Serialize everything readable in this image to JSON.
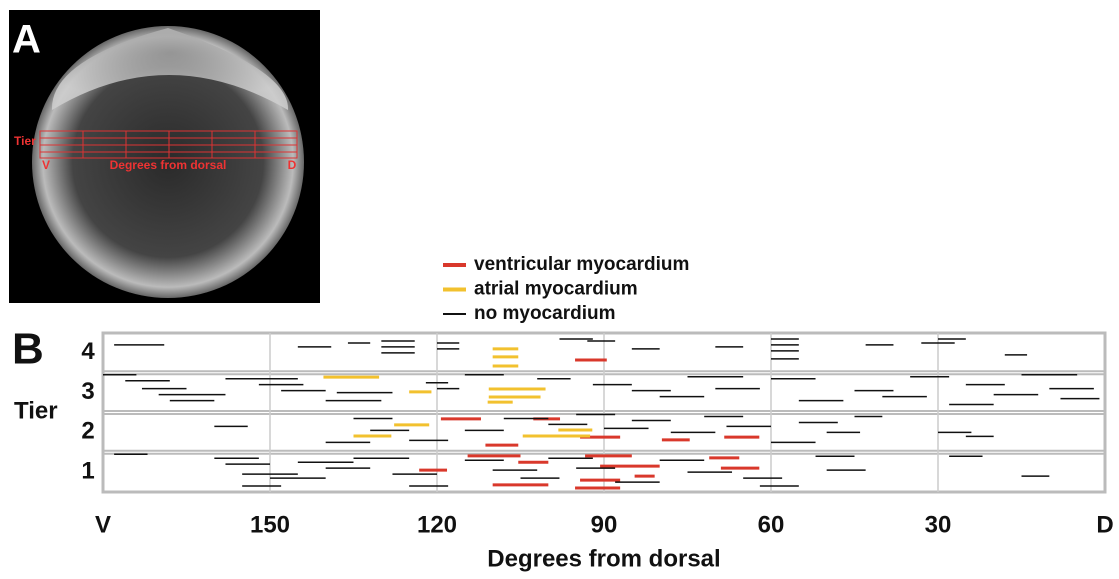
{
  "panel_a": {
    "label": "A",
    "tier_label": "Tier",
    "left_label": "V",
    "axis_label": "Degrees from dorsal",
    "right_label": "D"
  },
  "chart_data": {
    "type": "segment",
    "panel_label": "B",
    "ylabel": "Tier",
    "xlabel": "Degrees from dorsal",
    "tiers": [
      "1",
      "2",
      "3",
      "4"
    ],
    "xlim": [
      180,
      0
    ],
    "ylim": [
      0,
      4
    ],
    "xticks": [
      {
        "value": 180,
        "label": "V"
      },
      150,
      120,
      90,
      60,
      30,
      {
        "value": 0,
        "label": "D"
      }
    ],
    "grid": true,
    "series": [
      {
        "name": "ventricular myocardium",
        "color": "#d9382b",
        "segments": [
          [
            119.3,
            112.1,
            1.84
          ],
          [
            102.7,
            97.9,
            1.84
          ],
          [
            95.2,
            89.5,
            3.32
          ],
          [
            111.3,
            105.4,
            1.18
          ],
          [
            94.3,
            87.1,
            1.38
          ],
          [
            79.6,
            74.6,
            1.31
          ],
          [
            68.4,
            62.1,
            1.38
          ],
          [
            114.5,
            105,
            0.91
          ],
          [
            105.4,
            100,
            0.75
          ],
          [
            93.4,
            85,
            0.91
          ],
          [
            90.7,
            80,
            0.65
          ],
          [
            84.5,
            80.9,
            0.4
          ],
          [
            123.2,
            118.2,
            0.55
          ],
          [
            110,
            100,
            0.18
          ],
          [
            94.3,
            87.1,
            0.3
          ],
          [
            95.2,
            87.1,
            0.1
          ],
          [
            71.1,
            65.7,
            0.86
          ],
          [
            69,
            62.1,
            0.6
          ]
        ]
      },
      {
        "name": "atrial myocardium",
        "color": "#f2c12e",
        "segments": [
          [
            110,
            105.4,
            3.6
          ],
          [
            110,
            105.4,
            3.4
          ],
          [
            110,
            105.4,
            3.17
          ],
          [
            140.4,
            130.4,
            2.89
          ],
          [
            125,
            121,
            2.52
          ],
          [
            110.7,
            100.5,
            2.59
          ],
          [
            110.7,
            101.4,
            2.39
          ],
          [
            110.9,
            106.4,
            2.26
          ],
          [
            127.7,
            121.4,
            1.69
          ],
          [
            135,
            128.2,
            1.41
          ],
          [
            104.6,
            92.5,
            1.41
          ],
          [
            98.2,
            92.1,
            1.56
          ]
        ]
      },
      {
        "name": "no myocardium",
        "color": "#111111",
        "segments": [
          [
            178,
            169,
            3.7
          ],
          [
            145,
            139,
            3.65
          ],
          [
            130,
            124,
            3.8
          ],
          [
            130,
            124,
            3.65
          ],
          [
            130,
            124,
            3.5
          ],
          [
            120,
            116,
            3.75
          ],
          [
            120,
            116,
            3.6
          ],
          [
            136,
            132,
            3.75
          ],
          [
            93,
            88,
            3.8
          ],
          [
            85,
            80,
            3.6
          ],
          [
            70,
            65,
            3.65
          ],
          [
            60,
            55,
            3.85
          ],
          [
            60,
            55,
            3.7
          ],
          [
            60,
            55,
            3.55
          ],
          [
            60,
            55,
            3.35
          ],
          [
            43,
            38,
            3.7
          ],
          [
            30,
            25,
            3.85
          ],
          [
            33,
            27,
            3.75
          ],
          [
            18,
            14,
            3.45
          ],
          [
            98,
            92,
            3.85
          ],
          [
            180,
            174,
            2.95
          ],
          [
            176,
            168,
            2.8
          ],
          [
            173,
            165,
            2.6
          ],
          [
            170,
            158,
            2.45
          ],
          [
            168,
            160,
            2.3
          ],
          [
            158,
            145,
            2.85
          ],
          [
            152,
            144,
            2.7
          ],
          [
            148,
            140,
            2.55
          ],
          [
            140,
            130,
            2.3
          ],
          [
            138,
            128,
            2.5
          ],
          [
            122,
            118,
            2.75
          ],
          [
            120,
            116,
            2.6
          ],
          [
            115,
            108,
            2.95
          ],
          [
            102,
            96,
            2.85
          ],
          [
            92,
            85,
            2.7
          ],
          [
            85,
            78,
            2.55
          ],
          [
            80,
            72,
            2.4
          ],
          [
            75,
            65,
            2.9
          ],
          [
            70,
            62,
            2.6
          ],
          [
            60,
            52,
            2.85
          ],
          [
            55,
            47,
            2.3
          ],
          [
            45,
            38,
            2.55
          ],
          [
            40,
            32,
            2.4
          ],
          [
            35,
            28,
            2.9
          ],
          [
            25,
            18,
            2.7
          ],
          [
            20,
            12,
            2.45
          ],
          [
            15,
            5,
            2.95
          ],
          [
            10,
            2,
            2.6
          ],
          [
            8,
            1,
            2.35
          ],
          [
            28,
            20,
            2.2
          ],
          [
            160,
            154,
            1.65
          ],
          [
            135,
            128,
            1.85
          ],
          [
            132,
            125,
            1.55
          ],
          [
            125,
            118,
            1.3
          ],
          [
            115,
            108,
            1.55
          ],
          [
            108,
            100,
            1.85
          ],
          [
            100,
            93,
            1.7
          ],
          [
            95,
            88,
            1.95
          ],
          [
            90,
            82,
            1.6
          ],
          [
            85,
            78,
            1.8
          ],
          [
            78,
            70,
            1.5
          ],
          [
            72,
            65,
            1.9
          ],
          [
            68,
            60,
            1.65
          ],
          [
            60,
            52,
            1.25
          ],
          [
            55,
            48,
            1.75
          ],
          [
            50,
            44,
            1.5
          ],
          [
            45,
            40,
            1.9
          ],
          [
            30,
            24,
            1.5
          ],
          [
            25,
            20,
            1.4
          ],
          [
            140,
            132,
            1.25
          ],
          [
            178,
            172,
            0.95
          ],
          [
            160,
            152,
            0.85
          ],
          [
            158,
            150,
            0.7
          ],
          [
            155,
            145,
            0.45
          ],
          [
            150,
            140,
            0.35
          ],
          [
            145,
            135,
            0.75
          ],
          [
            140,
            132,
            0.6
          ],
          [
            135,
            125,
            0.85
          ],
          [
            128,
            120,
            0.45
          ],
          [
            125,
            118,
            0.15
          ],
          [
            115,
            108,
            0.8
          ],
          [
            110,
            102,
            0.55
          ],
          [
            105,
            98,
            0.35
          ],
          [
            100,
            92,
            0.85
          ],
          [
            95,
            88,
            0.6
          ],
          [
            88,
            80,
            0.25
          ],
          [
            80,
            72,
            0.8
          ],
          [
            75,
            67,
            0.5
          ],
          [
            65,
            58,
            0.35
          ],
          [
            62,
            55,
            0.15
          ],
          [
            52,
            45,
            0.9
          ],
          [
            50,
            43,
            0.55
          ],
          [
            28,
            22,
            0.9
          ],
          [
            15,
            10,
            0.4
          ],
          [
            155,
            148,
            0.15
          ]
        ]
      }
    ]
  }
}
